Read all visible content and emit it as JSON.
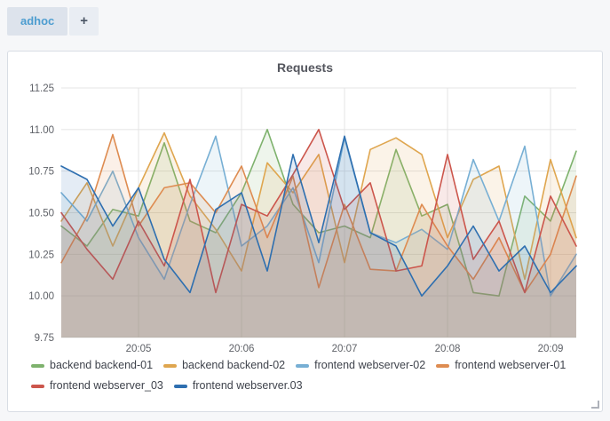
{
  "tabs": {
    "items": [
      {
        "label": "adhoc"
      }
    ],
    "add_label": "+",
    "active_color": "#4d9dd0"
  },
  "panel": {
    "title": "Requests"
  },
  "chart_data": {
    "type": "line",
    "title": "Requests",
    "grid": true,
    "legend_position": "bottom",
    "area_fill": true,
    "fill_opacity": 0.13,
    "ylim": [
      9.75,
      11.25
    ],
    "y_ticks": [
      "11.25",
      "11.00",
      "10.75",
      "10.50",
      "10.25",
      "10.00",
      "9.75"
    ],
    "x_total_seconds": 300,
    "x_start_time": "20:04:15",
    "x_interval_seconds": 15,
    "x_ticks": [
      {
        "label": "20:05",
        "t": 45
      },
      {
        "label": "20:06",
        "t": 105
      },
      {
        "label": "20:07",
        "t": 165
      },
      {
        "label": "20:08",
        "t": 225
      },
      {
        "label": "20:09",
        "t": 285
      }
    ],
    "grid_color": "#e4e4e4",
    "axis_text_color": "#5f6268",
    "series": [
      {
        "name": "backend backend-01",
        "color": "#7EB26D",
        "values": [
          10.42,
          10.3,
          10.52,
          10.48,
          10.92,
          10.45,
          10.38,
          10.62,
          11.0,
          10.55,
          10.38,
          10.42,
          10.35,
          10.88,
          10.48,
          10.55,
          10.02,
          10.0,
          10.6,
          10.45,
          10.87
        ]
      },
      {
        "name": "backend backend-02",
        "color": "#DFA64F",
        "values": [
          10.45,
          10.68,
          10.3,
          10.65,
          10.98,
          10.6,
          10.4,
          10.15,
          10.8,
          10.62,
          10.85,
          10.2,
          10.88,
          10.95,
          10.85,
          10.35,
          10.7,
          10.78,
          10.1,
          10.82,
          10.35
        ]
      },
      {
        "name": "frontend webserver-02",
        "color": "#77AFD4",
        "values": [
          10.62,
          10.45,
          10.75,
          10.35,
          10.1,
          10.55,
          10.96,
          10.3,
          10.42,
          10.65,
          10.2,
          10.95,
          10.38,
          10.32,
          10.4,
          10.28,
          10.82,
          10.45,
          10.9,
          10.0,
          10.25
        ]
      },
      {
        "name": "frontend webserver-01",
        "color": "#DE8C51",
        "values": [
          10.2,
          10.48,
          10.97,
          10.42,
          10.65,
          10.68,
          10.5,
          10.78,
          10.35,
          10.72,
          10.05,
          10.55,
          10.16,
          10.15,
          10.55,
          10.3,
          10.1,
          10.35,
          10.02,
          10.25,
          10.72
        ]
      },
      {
        "name": "frontend webserver_03",
        "color": "#CC564C",
        "values": [
          10.5,
          10.28,
          10.1,
          10.45,
          10.18,
          10.7,
          10.02,
          10.55,
          10.48,
          10.73,
          11.0,
          10.52,
          10.68,
          10.15,
          10.18,
          10.85,
          10.22,
          10.45,
          10.02,
          10.6,
          10.3
        ]
      },
      {
        "name": "frontend webserver.03",
        "color": "#2E6FB0",
        "values": [
          10.78,
          10.7,
          10.42,
          10.65,
          10.22,
          10.02,
          10.52,
          10.62,
          10.15,
          10.85,
          10.32,
          10.96,
          10.38,
          10.3,
          10.0,
          10.18,
          10.42,
          10.15,
          10.3,
          10.02,
          10.18
        ]
      }
    ]
  }
}
